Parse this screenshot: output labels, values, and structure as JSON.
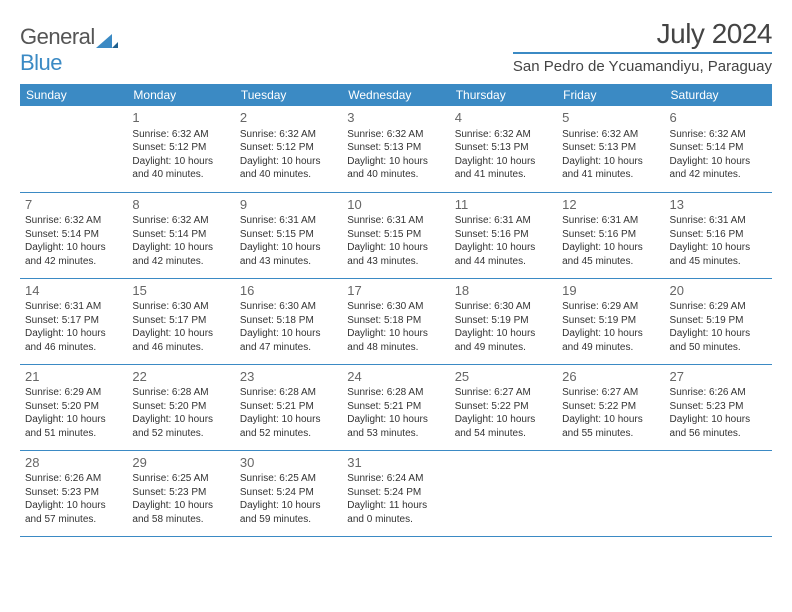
{
  "logo": {
    "text1": "General",
    "text2": "Blue"
  },
  "title": "July 2024",
  "location": "San Pedro de Ycuamandiyu, Paraguay",
  "week_labels": [
    "Sunday",
    "Monday",
    "Tuesday",
    "Wednesday",
    "Thursday",
    "Friday",
    "Saturday"
  ],
  "colors": {
    "accent": "#3b8ac4",
    "bg": "#ffffff",
    "text": "#333333"
  },
  "weeks": [
    [
      null,
      {
        "n": "1",
        "sr": "Sunrise: 6:32 AM",
        "ss": "Sunset: 5:12 PM",
        "d1": "Daylight: 10 hours",
        "d2": "and 40 minutes."
      },
      {
        "n": "2",
        "sr": "Sunrise: 6:32 AM",
        "ss": "Sunset: 5:12 PM",
        "d1": "Daylight: 10 hours",
        "d2": "and 40 minutes."
      },
      {
        "n": "3",
        "sr": "Sunrise: 6:32 AM",
        "ss": "Sunset: 5:13 PM",
        "d1": "Daylight: 10 hours",
        "d2": "and 40 minutes."
      },
      {
        "n": "4",
        "sr": "Sunrise: 6:32 AM",
        "ss": "Sunset: 5:13 PM",
        "d1": "Daylight: 10 hours",
        "d2": "and 41 minutes."
      },
      {
        "n": "5",
        "sr": "Sunrise: 6:32 AM",
        "ss": "Sunset: 5:13 PM",
        "d1": "Daylight: 10 hours",
        "d2": "and 41 minutes."
      },
      {
        "n": "6",
        "sr": "Sunrise: 6:32 AM",
        "ss": "Sunset: 5:14 PM",
        "d1": "Daylight: 10 hours",
        "d2": "and 42 minutes."
      }
    ],
    [
      {
        "n": "7",
        "sr": "Sunrise: 6:32 AM",
        "ss": "Sunset: 5:14 PM",
        "d1": "Daylight: 10 hours",
        "d2": "and 42 minutes."
      },
      {
        "n": "8",
        "sr": "Sunrise: 6:32 AM",
        "ss": "Sunset: 5:14 PM",
        "d1": "Daylight: 10 hours",
        "d2": "and 42 minutes."
      },
      {
        "n": "9",
        "sr": "Sunrise: 6:31 AM",
        "ss": "Sunset: 5:15 PM",
        "d1": "Daylight: 10 hours",
        "d2": "and 43 minutes."
      },
      {
        "n": "10",
        "sr": "Sunrise: 6:31 AM",
        "ss": "Sunset: 5:15 PM",
        "d1": "Daylight: 10 hours",
        "d2": "and 43 minutes."
      },
      {
        "n": "11",
        "sr": "Sunrise: 6:31 AM",
        "ss": "Sunset: 5:16 PM",
        "d1": "Daylight: 10 hours",
        "d2": "and 44 minutes."
      },
      {
        "n": "12",
        "sr": "Sunrise: 6:31 AM",
        "ss": "Sunset: 5:16 PM",
        "d1": "Daylight: 10 hours",
        "d2": "and 45 minutes."
      },
      {
        "n": "13",
        "sr": "Sunrise: 6:31 AM",
        "ss": "Sunset: 5:16 PM",
        "d1": "Daylight: 10 hours",
        "d2": "and 45 minutes."
      }
    ],
    [
      {
        "n": "14",
        "sr": "Sunrise: 6:31 AM",
        "ss": "Sunset: 5:17 PM",
        "d1": "Daylight: 10 hours",
        "d2": "and 46 minutes."
      },
      {
        "n": "15",
        "sr": "Sunrise: 6:30 AM",
        "ss": "Sunset: 5:17 PM",
        "d1": "Daylight: 10 hours",
        "d2": "and 46 minutes."
      },
      {
        "n": "16",
        "sr": "Sunrise: 6:30 AM",
        "ss": "Sunset: 5:18 PM",
        "d1": "Daylight: 10 hours",
        "d2": "and 47 minutes."
      },
      {
        "n": "17",
        "sr": "Sunrise: 6:30 AM",
        "ss": "Sunset: 5:18 PM",
        "d1": "Daylight: 10 hours",
        "d2": "and 48 minutes."
      },
      {
        "n": "18",
        "sr": "Sunrise: 6:30 AM",
        "ss": "Sunset: 5:19 PM",
        "d1": "Daylight: 10 hours",
        "d2": "and 49 minutes."
      },
      {
        "n": "19",
        "sr": "Sunrise: 6:29 AM",
        "ss": "Sunset: 5:19 PM",
        "d1": "Daylight: 10 hours",
        "d2": "and 49 minutes."
      },
      {
        "n": "20",
        "sr": "Sunrise: 6:29 AM",
        "ss": "Sunset: 5:19 PM",
        "d1": "Daylight: 10 hours",
        "d2": "and 50 minutes."
      }
    ],
    [
      {
        "n": "21",
        "sr": "Sunrise: 6:29 AM",
        "ss": "Sunset: 5:20 PM",
        "d1": "Daylight: 10 hours",
        "d2": "and 51 minutes."
      },
      {
        "n": "22",
        "sr": "Sunrise: 6:28 AM",
        "ss": "Sunset: 5:20 PM",
        "d1": "Daylight: 10 hours",
        "d2": "and 52 minutes."
      },
      {
        "n": "23",
        "sr": "Sunrise: 6:28 AM",
        "ss": "Sunset: 5:21 PM",
        "d1": "Daylight: 10 hours",
        "d2": "and 52 minutes."
      },
      {
        "n": "24",
        "sr": "Sunrise: 6:28 AM",
        "ss": "Sunset: 5:21 PM",
        "d1": "Daylight: 10 hours",
        "d2": "and 53 minutes."
      },
      {
        "n": "25",
        "sr": "Sunrise: 6:27 AM",
        "ss": "Sunset: 5:22 PM",
        "d1": "Daylight: 10 hours",
        "d2": "and 54 minutes."
      },
      {
        "n": "26",
        "sr": "Sunrise: 6:27 AM",
        "ss": "Sunset: 5:22 PM",
        "d1": "Daylight: 10 hours",
        "d2": "and 55 minutes."
      },
      {
        "n": "27",
        "sr": "Sunrise: 6:26 AM",
        "ss": "Sunset: 5:23 PM",
        "d1": "Daylight: 10 hours",
        "d2": "and 56 minutes."
      }
    ],
    [
      {
        "n": "28",
        "sr": "Sunrise: 6:26 AM",
        "ss": "Sunset: 5:23 PM",
        "d1": "Daylight: 10 hours",
        "d2": "and 57 minutes."
      },
      {
        "n": "29",
        "sr": "Sunrise: 6:25 AM",
        "ss": "Sunset: 5:23 PM",
        "d1": "Daylight: 10 hours",
        "d2": "and 58 minutes."
      },
      {
        "n": "30",
        "sr": "Sunrise: 6:25 AM",
        "ss": "Sunset: 5:24 PM",
        "d1": "Daylight: 10 hours",
        "d2": "and 59 minutes."
      },
      {
        "n": "31",
        "sr": "Sunrise: 6:24 AM",
        "ss": "Sunset: 5:24 PM",
        "d1": "Daylight: 11 hours",
        "d2": "and 0 minutes."
      },
      null,
      null,
      null
    ]
  ]
}
